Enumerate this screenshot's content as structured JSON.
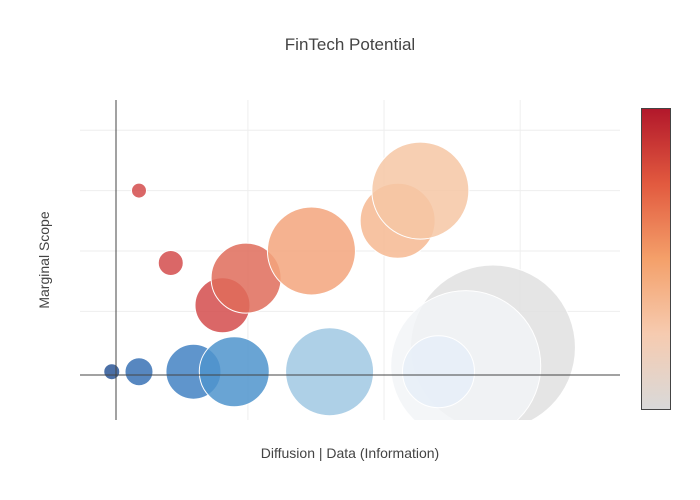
{
  "chart_data": {
    "type": "scatter",
    "title": "FinTech Potential",
    "xlabel": "Diffusion | Data (Information)",
    "ylabel": "Marginal Scope",
    "xlim": [
      -0.35,
      5.6
    ],
    "ylim": [
      -0.8,
      4.5
    ],
    "x_gridlines": [
      0,
      1.5,
      3,
      4.5
    ],
    "y_gridlines": [
      0,
      1,
      2,
      3,
      4
    ],
    "grid": true,
    "legend": "colorbar right",
    "colorscale": [
      "#ffffff",
      "#d9d9d9",
      "#f6cbb0",
      "#f4a06a",
      "#e25a3f",
      "#b2182b"
    ],
    "points": [
      {
        "x": 4.2,
        "y": 0.4,
        "size": 165,
        "color": "#e0e0e0"
      },
      {
        "x": 3.9,
        "y": 0.1,
        "size": 150,
        "color": "#f2f4f7"
      },
      {
        "x": 3.6,
        "y": 0.0,
        "size": 72,
        "color": "#e6eef8"
      },
      {
        "x": 0.0,
        "y": 0.0,
        "size": 16,
        "color": "#2c5696"
      },
      {
        "x": 0.3,
        "y": 0.0,
        "size": 28,
        "color": "#3a72b5"
      },
      {
        "x": 0.9,
        "y": 0.0,
        "size": 55,
        "color": "#4383c3"
      },
      {
        "x": 1.35,
        "y": 0.0,
        "size": 70,
        "color": "#4f94cc"
      },
      {
        "x": 2.4,
        "y": 0.0,
        "size": 88,
        "color": "#a0c8e3"
      },
      {
        "x": 0.3,
        "y": 3.0,
        "size": 15,
        "color": "#d34c4c"
      },
      {
        "x": 0.65,
        "y": 1.8,
        "size": 25,
        "color": "#d34c4c"
      },
      {
        "x": 1.22,
        "y": 1.1,
        "size": 55,
        "color": "#d34c4c"
      },
      {
        "x": 1.48,
        "y": 1.55,
        "size": 70,
        "color": "#df6c5a"
      },
      {
        "x": 2.2,
        "y": 2.0,
        "size": 88,
        "color": "#f3a47c"
      },
      {
        "x": 3.15,
        "y": 2.5,
        "size": 75,
        "color": "#f6b892"
      },
      {
        "x": 3.4,
        "y": 3.0,
        "size": 97,
        "color": "#f6c7a5"
      }
    ]
  }
}
